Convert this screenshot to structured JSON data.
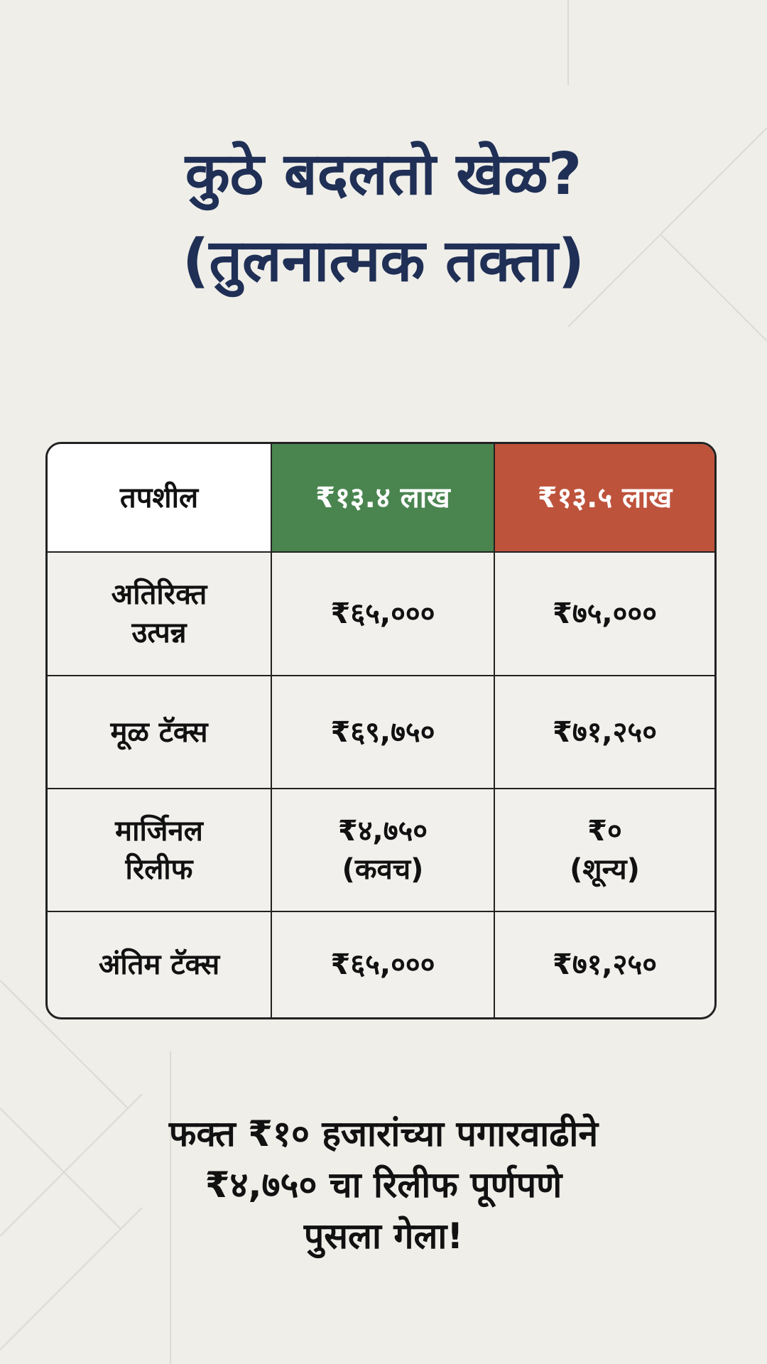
{
  "title": {
    "line1": "कुठे बदलतो खेळ?",
    "line2": "(तुलनात्मक तक्ता)"
  },
  "colors": {
    "title": "#1f2f55",
    "green_header": "#4a8550",
    "red_header": "#be533c"
  },
  "table": {
    "headers": [
      "तपशील",
      "₹१३.४ लाख",
      "₹१३.५ लाख"
    ],
    "rows": [
      {
        "label": [
          "अतिरिक्त",
          "उत्पन्न"
        ],
        "a": [
          "₹६५,०००"
        ],
        "b": [
          "₹७५,०००"
        ]
      },
      {
        "label": [
          "मूळ टॅक्स"
        ],
        "a": [
          "₹६९,७५०"
        ],
        "b": [
          "₹७१,२५०"
        ]
      },
      {
        "label": [
          "मार्जिनल",
          "रिलीफ"
        ],
        "a": [
          "₹४,७५०",
          "(कवच)"
        ],
        "b": [
          "₹०",
          "(शून्य)"
        ]
      },
      {
        "label": [
          "अंतिम टॅक्स"
        ],
        "a": [
          "₹६५,०००"
        ],
        "b": [
          "₹७१,२५०"
        ]
      }
    ]
  },
  "footer": {
    "line1": "फक्त ₹१० हजारांच्या पगारवाढीने",
    "line2": "₹४,७५० चा रिलीफ पूर्णपणे",
    "line3": "पुसला गेला!"
  }
}
